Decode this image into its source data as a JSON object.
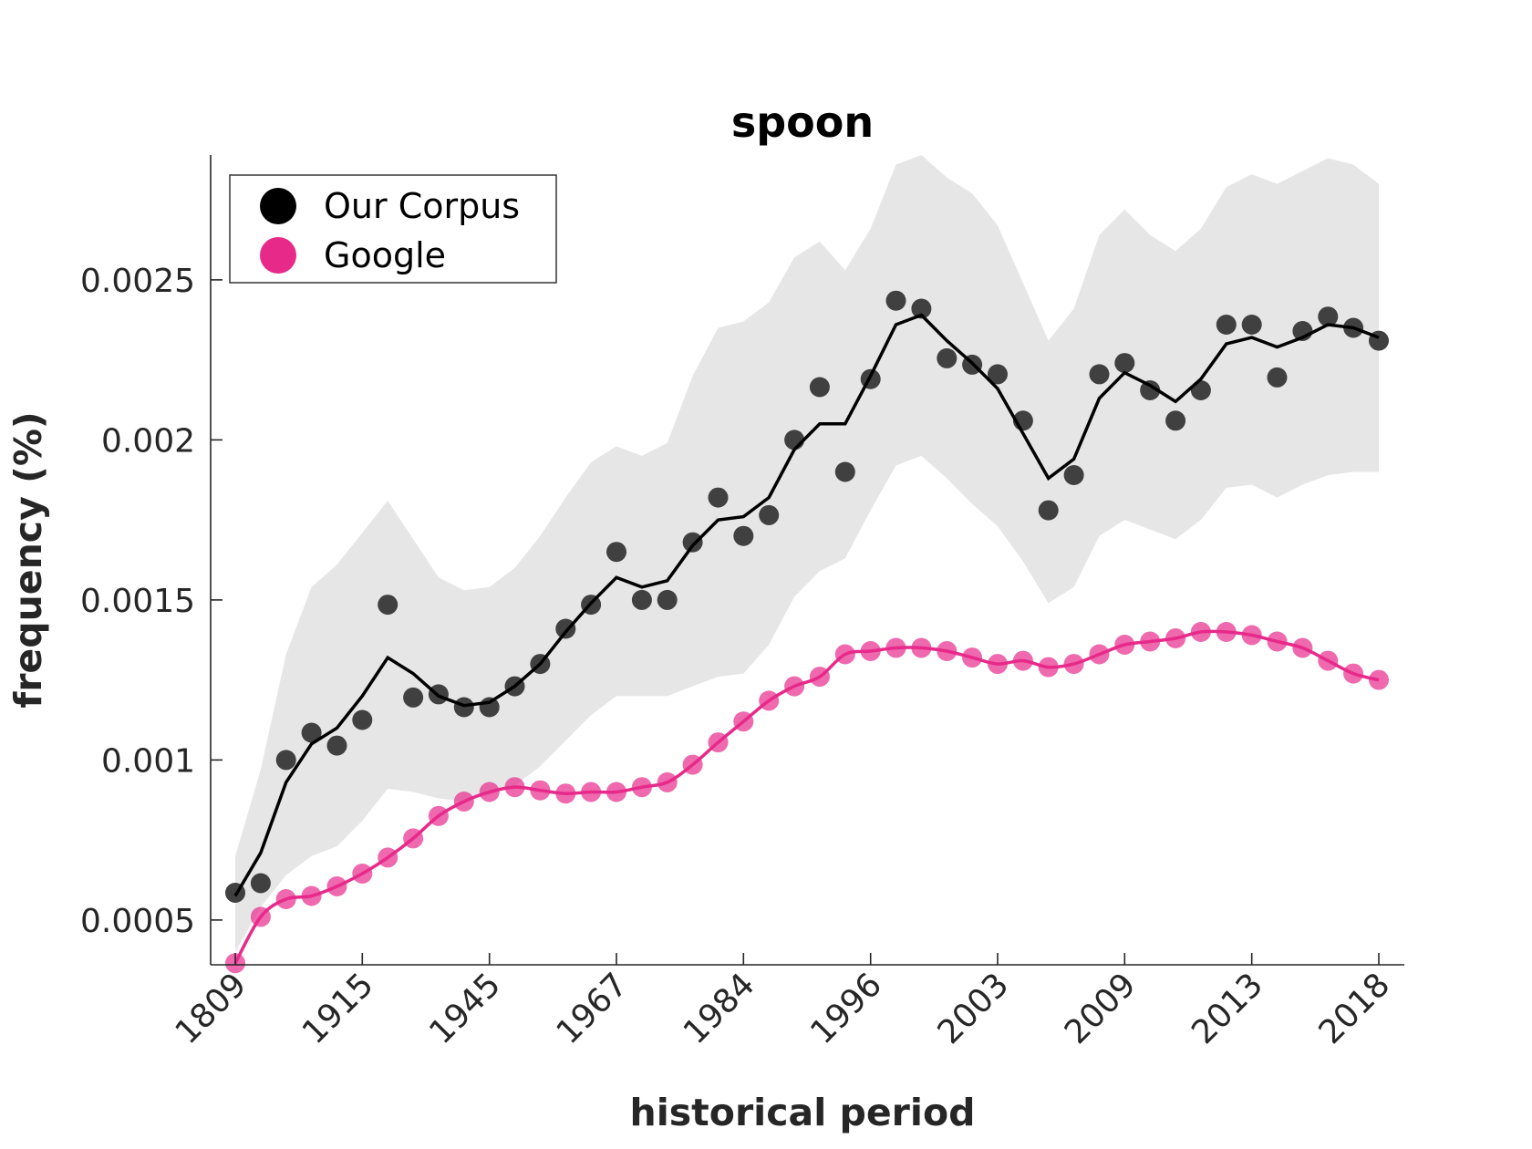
{
  "chart_data": {
    "type": "scatter",
    "title": "spoon",
    "xlabel": "historical period",
    "ylabel": "frequency (%)",
    "x_tick_labels": [
      "1809",
      "1915",
      "1945",
      "1967",
      "1984",
      "1996",
      "2003",
      "2009",
      "2013",
      "2018"
    ],
    "y_ticks": [
      0.0005,
      0.001,
      0.0015,
      0.002,
      0.0025
    ],
    "y_tick_labels": [
      "0.0005",
      "0.001",
      "0.0015",
      "0.002",
      "0.0025"
    ],
    "ylim": [
      0.00036,
      0.00289
    ],
    "n_points": 46,
    "legend": {
      "placement": "top-left",
      "entries": [
        {
          "label": "Our Corpus",
          "color": "#000000"
        },
        {
          "label": "Google",
          "color": "#e7298a"
        }
      ]
    },
    "series": [
      {
        "name": "Our Corpus",
        "color": "#404040",
        "marker": "circle",
        "points": [
          0.000585,
          0.000615,
          0.001,
          0.001085,
          0.001045,
          0.001125,
          0.001485,
          0.001195,
          0.001205,
          0.001165,
          0.001165,
          0.00123,
          0.0013,
          0.00141,
          0.001485,
          0.00165,
          0.0015,
          0.0015,
          0.00168,
          0.00182,
          0.0017,
          0.001765,
          0.002,
          0.002165,
          0.0019,
          0.00219,
          0.002435,
          0.00241,
          0.002255,
          0.002235,
          0.002205,
          0.00206,
          0.00178,
          0.00189,
          0.002205,
          0.00224,
          0.002155,
          0.00206,
          0.002155,
          0.00236,
          0.00236,
          0.002195,
          0.00234,
          0.002385,
          0.00235,
          0.00231
        ],
        "smoothed": [
          0.000575,
          0.00071,
          0.00093,
          0.00105,
          0.0011,
          0.0012,
          0.00132,
          0.00127,
          0.0012,
          0.00117,
          0.00118,
          0.00123,
          0.0013,
          0.0014,
          0.00149,
          0.00157,
          0.00154,
          0.00156,
          0.00167,
          0.00175,
          0.00176,
          0.00182,
          0.00197,
          0.00205,
          0.00205,
          0.0022,
          0.00236,
          0.00239,
          0.00231,
          0.00224,
          0.00216,
          0.00202,
          0.00188,
          0.00194,
          0.00213,
          0.00221,
          0.00217,
          0.00212,
          0.00219,
          0.0023,
          0.00232,
          0.00229,
          0.00232,
          0.00236,
          0.00235,
          0.00232
        ],
        "band_upper": [
          0.0007,
          0.00097,
          0.00133,
          0.00154,
          0.00161,
          0.00171,
          0.00181,
          0.00169,
          0.00157,
          0.00153,
          0.00154,
          0.0016,
          0.0017,
          0.00182,
          0.00193,
          0.00198,
          0.00195,
          0.00199,
          0.0022,
          0.00235,
          0.00237,
          0.00243,
          0.00257,
          0.00262,
          0.00253,
          0.00266,
          0.00286,
          0.00289,
          0.00282,
          0.00277,
          0.00267,
          0.00249,
          0.00231,
          0.00241,
          0.00264,
          0.00272,
          0.00264,
          0.00259,
          0.00266,
          0.00279,
          0.00283,
          0.0028,
          0.00284,
          0.00288,
          0.00286,
          0.0028
        ],
        "band_lower": [
          0.0004,
          0.00054,
          0.00064,
          0.0007,
          0.00073,
          0.00081,
          0.00091,
          0.0009,
          0.00088,
          0.00087,
          0.00089,
          0.00092,
          0.00098,
          0.00106,
          0.00114,
          0.0012,
          0.0012,
          0.0012,
          0.00123,
          0.00126,
          0.00127,
          0.00136,
          0.00151,
          0.00159,
          0.00163,
          0.00178,
          0.00192,
          0.00195,
          0.00188,
          0.0018,
          0.00173,
          0.00162,
          0.00149,
          0.00154,
          0.0017,
          0.00175,
          0.00172,
          0.00169,
          0.00175,
          0.00185,
          0.00186,
          0.00182,
          0.00186,
          0.00189,
          0.0019,
          0.0019
        ]
      },
      {
        "name": "Google",
        "color": "#e7298a",
        "marker": "circle",
        "points": [
          0.000365,
          0.00051,
          0.000565,
          0.000575,
          0.000605,
          0.000645,
          0.000695,
          0.000755,
          0.000825,
          0.00087,
          0.0009,
          0.000915,
          0.000905,
          0.000895,
          0.0009,
          0.0009,
          0.000915,
          0.00093,
          0.000985,
          0.001055,
          0.00112,
          0.001185,
          0.00123,
          0.00126,
          0.00133,
          0.00134,
          0.00135,
          0.00135,
          0.00134,
          0.00132,
          0.0013,
          0.00131,
          0.00129,
          0.0013,
          0.00133,
          0.00136,
          0.00137,
          0.00138,
          0.0014,
          0.0014,
          0.00139,
          0.00137,
          0.00135,
          0.00131,
          0.00127,
          0.00125
        ]
      }
    ]
  }
}
